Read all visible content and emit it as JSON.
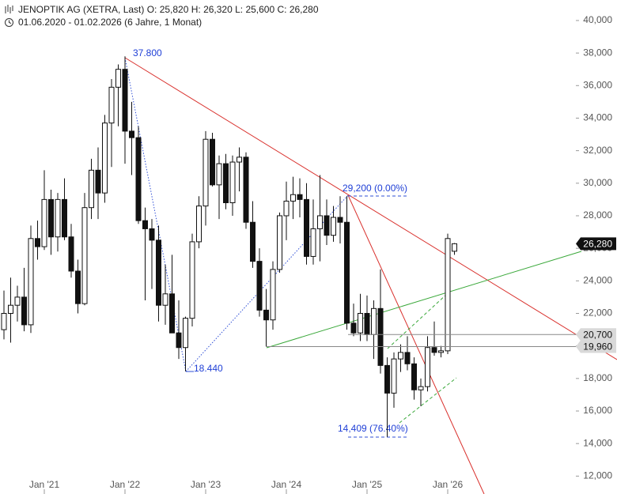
{
  "chart_data": {
    "type": "candlestick",
    "title": "JENOPTIK AG (XETRA, Last)  O: 25,820  H: 26,320  L: 25,600  C: 26,280",
    "subtitle": "01.06.2020 - 01.02.2026   (6 Jahre, 1 Monat)",
    "categories": [
      null,
      null,
      null,
      null,
      null,
      null,
      "Jan '21",
      null,
      null,
      null,
      null,
      null,
      null,
      null,
      null,
      null,
      null,
      null,
      "Jan '22",
      null,
      null,
      null,
      null,
      null,
      null,
      null,
      null,
      null,
      null,
      null,
      "Jan '23",
      null,
      null,
      null,
      null,
      null,
      null,
      null,
      null,
      null,
      null,
      null,
      "Jan '24",
      null,
      null,
      null,
      null,
      null,
      null,
      null,
      null,
      null,
      null,
      null,
      "Jan '25",
      null,
      null,
      null,
      null,
      null,
      null,
      null,
      null,
      null,
      null,
      null,
      "Jan '26",
      null
    ],
    "series": [
      {
        "name": "JENOPTIK AG",
        "open": [
          21000,
          22000,
          22500,
          23000,
          21300,
          26600,
          26100,
          29000,
          26700,
          29000,
          26700,
          24600,
          22600,
          28500,
          30800,
          29400,
          33700,
          35900,
          37000,
          33200,
          32800,
          27700,
          27200,
          26500,
          22500,
          23200,
          20800,
          19900,
          21700,
          26400,
          28600,
          32700,
          29900,
          31200,
          28800,
          31300,
          31600,
          27600,
          25200,
          22200,
          21600,
          24700,
          28000,
          28900,
          29300,
          29000,
          25500,
          27200,
          28000,
          26800,
          27900,
          27600,
          21400,
          20800,
          22000,
          20700,
          22300,
          18800,
          17100,
          19200,
          19600,
          18900,
          17300,
          17500,
          19900,
          19600,
          19700,
          25820
        ],
        "high": [
          23400,
          24200,
          23700,
          24800,
          27400,
          27700,
          30800,
          29600,
          29400,
          30300,
          27500,
          25300,
          29400,
          31500,
          32200,
          34200,
          36400,
          37300,
          37800,
          35000,
          33500,
          28500,
          27800,
          27400,
          25000,
          25600,
          22800,
          21800,
          26900,
          29200,
          33200,
          33100,
          31700,
          31800,
          31700,
          32200,
          31900,
          28900,
          26000,
          23500,
          25200,
          28200,
          30100,
          30400,
          30300,
          30000,
          29000,
          30500,
          29000,
          28600,
          29200,
          29200,
          22600,
          23200,
          23100,
          22800,
          24700,
          19300,
          19600,
          20100,
          20600,
          19300,
          18000,
          20600,
          21500,
          20000,
          26900,
          26320
        ],
        "low": [
          20400,
          20200,
          21500,
          20900,
          20800,
          25300,
          25900,
          25600,
          25800,
          26500,
          24200,
          22000,
          22500,
          27800,
          27800,
          28800,
          31000,
          33500,
          31200,
          30500,
          27500,
          22800,
          23500,
          21500,
          21300,
          20800,
          19200,
          18440,
          21200,
          26000,
          27400,
          29800,
          27800,
          28400,
          28000,
          29500,
          27200,
          24800,
          21800,
          19960,
          21000,
          24500,
          26500,
          27800,
          27900,
          25000,
          25000,
          25200,
          26200,
          26400,
          26300,
          21000,
          20600,
          20300,
          20300,
          19200,
          18300,
          14409,
          16200,
          18400,
          18500,
          16700,
          16300,
          17200,
          19400,
          19300,
          19500,
          25600
        ],
        "close": [
          22000,
          22500,
          23000,
          21300,
          26600,
          26100,
          29000,
          26700,
          29000,
          26700,
          24600,
          22600,
          28500,
          30800,
          29400,
          33700,
          35900,
          37000,
          33200,
          32800,
          27700,
          27200,
          26500,
          22500,
          23200,
          20800,
          19900,
          21700,
          26400,
          28600,
          32700,
          29900,
          31200,
          28800,
          31300,
          31600,
          27600,
          25200,
          22200,
          21600,
          24700,
          28000,
          28900,
          29300,
          29000,
          25500,
          27200,
          28000,
          26800,
          27900,
          27600,
          21400,
          20800,
          22000,
          20700,
          22300,
          18800,
          17100,
          19200,
          19600,
          18900,
          17300,
          17500,
          19900,
          19600,
          19700,
          26600,
          26280
        ]
      }
    ],
    "ylim": [
      10900,
      41260
    ],
    "yticks": [
      {
        "value": 12000,
        "label": "12,000"
      },
      {
        "value": 14000,
        "label": "14,000"
      },
      {
        "value": 16000,
        "label": "16,000"
      },
      {
        "value": 18000,
        "label": "18,000"
      },
      {
        "value": 20000,
        "label": "20,000"
      },
      {
        "value": 22000,
        "label": "22,000"
      },
      {
        "value": 24000,
        "label": "24,000"
      },
      {
        "value": 26000,
        "label": "26,000"
      },
      {
        "value": 28000,
        "label": "28,000"
      },
      {
        "value": 30000,
        "label": "30,000"
      },
      {
        "value": 32000,
        "label": "32,000"
      },
      {
        "value": 34000,
        "label": "34,000"
      },
      {
        "value": 36000,
        "label": "36,000"
      },
      {
        "value": 38000,
        "label": "38,000"
      },
      {
        "value": 40000,
        "label": "40,000"
      }
    ],
    "price_markers": [
      {
        "value": 26280,
        "label": "26,280",
        "color": "#111111"
      },
      {
        "value": 20700,
        "label": "20,700",
        "color": "#d9d9d9"
      },
      {
        "value": 19960,
        "label": "19,960",
        "color": "#d9d9d9"
      }
    ],
    "annotations": [
      "37.800",
      "18.440",
      "29,200 (0.00%)",
      "14,409 (76.40%)"
    ],
    "grid": false
  }
}
